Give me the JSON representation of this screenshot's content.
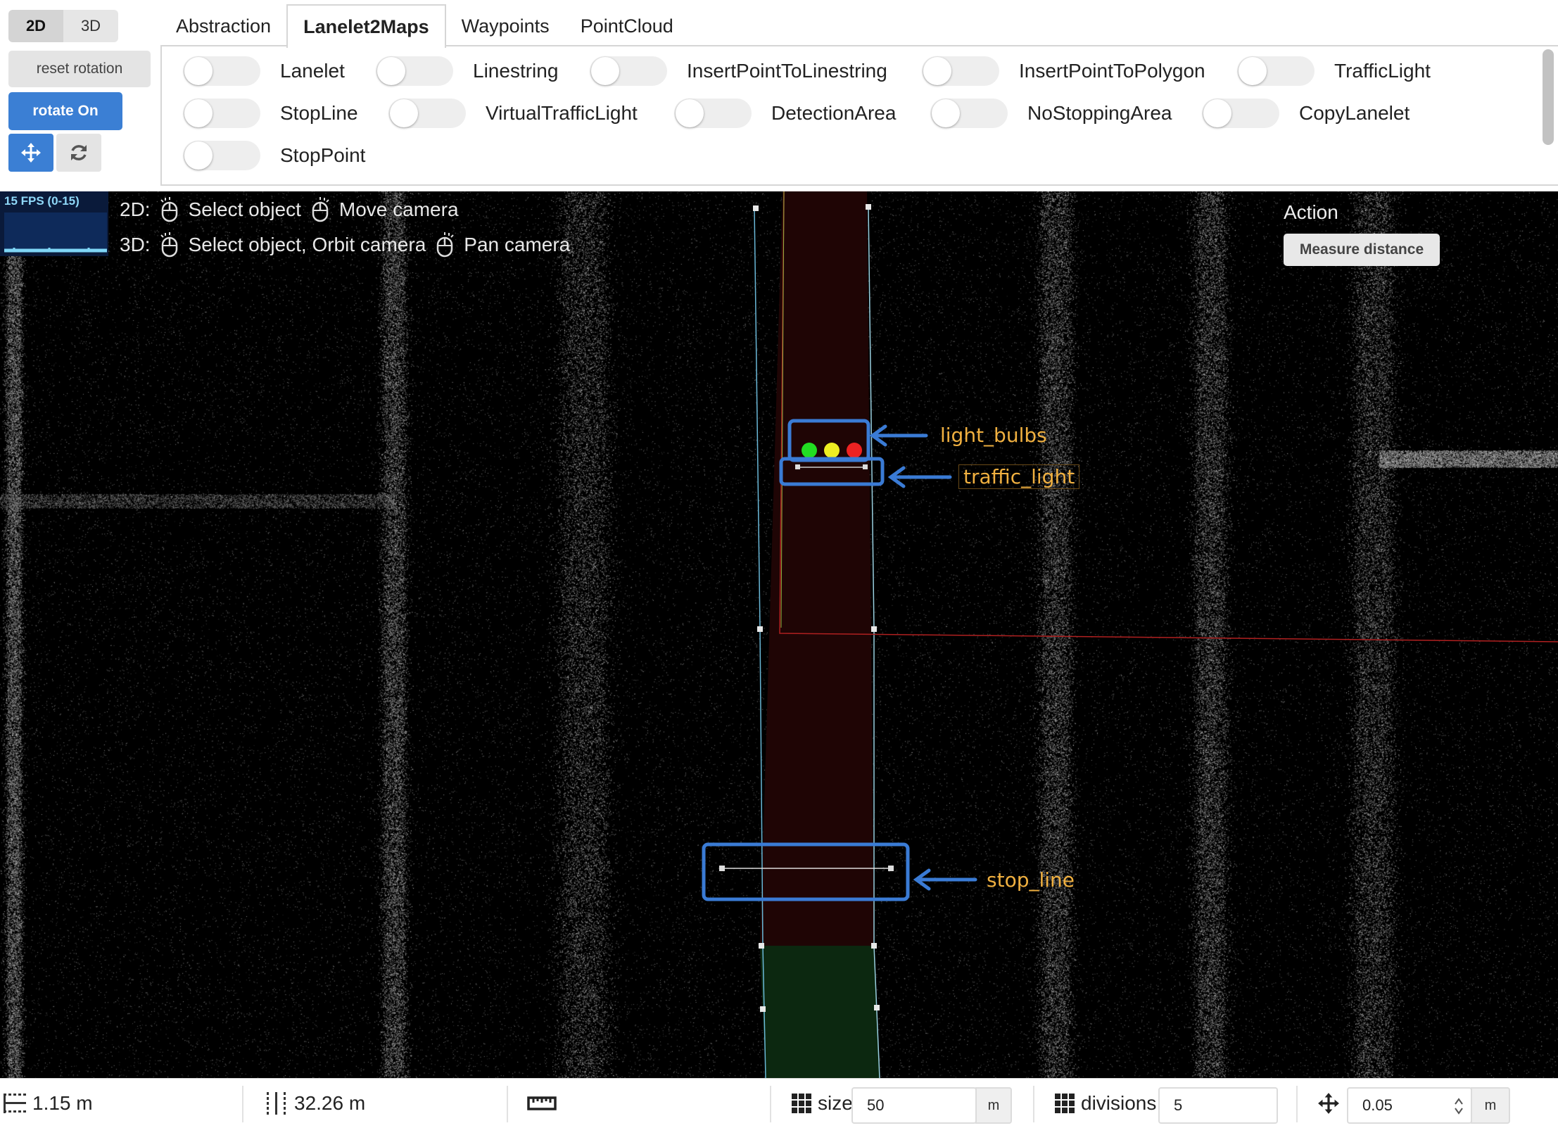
{
  "view_mode": {
    "options": [
      "2D",
      "3D"
    ],
    "selected": "2D"
  },
  "controls": {
    "reset_label": "reset rotation",
    "rotate_label": "rotate On"
  },
  "tabs": [
    {
      "label": "Abstraction",
      "active": false
    },
    {
      "label": "Lanelet2Maps",
      "active": true
    },
    {
      "label": "Waypoints",
      "active": false
    },
    {
      "label": "PointCloud",
      "active": false
    }
  ],
  "toggles": [
    {
      "label": "Lanelet",
      "on": false
    },
    {
      "label": "Linestring",
      "on": false
    },
    {
      "label": "InsertPointToLinestring",
      "on": false
    },
    {
      "label": "InsertPointToPolygon",
      "on": false
    },
    {
      "label": "TrafficLight",
      "on": false
    },
    {
      "label": "StopLine",
      "on": false
    },
    {
      "label": "VirtualTrafficLight",
      "on": false
    },
    {
      "label": "DetectionArea",
      "on": false
    },
    {
      "label": "NoStoppingArea",
      "on": false
    },
    {
      "label": "CopyLanelet",
      "on": false
    },
    {
      "label": "StopPoint",
      "on": false
    }
  ],
  "viewport": {
    "fps_label": "15 FPS (0-15)",
    "hint_2d": {
      "prefix": "2D:",
      "select": "Select object",
      "move": "Move camera"
    },
    "hint_3d": {
      "prefix": "3D:",
      "select": "Select object, Orbit camera",
      "pan": "Pan camera"
    },
    "action_title": "Action",
    "measure_label": "Measure distance",
    "annotations": {
      "light_bulbs": "light_bulbs",
      "traffic_light": "traffic_light",
      "stop_line": "stop_line"
    },
    "colors": {
      "bulb_green": "#22dd22",
      "bulb_yellow": "#eeee22",
      "bulb_red": "#ee2222",
      "annotation": "#f0b040",
      "box": "#3a7bd5"
    }
  },
  "bottom": {
    "width_readout": "1.15 m",
    "height_readout": "32.26 m",
    "size_label": "size",
    "size_value": "50",
    "size_unit": "m",
    "divisions_label": "divisions",
    "divisions_value": "5",
    "step_value": "0.05",
    "step_unit": "m"
  }
}
